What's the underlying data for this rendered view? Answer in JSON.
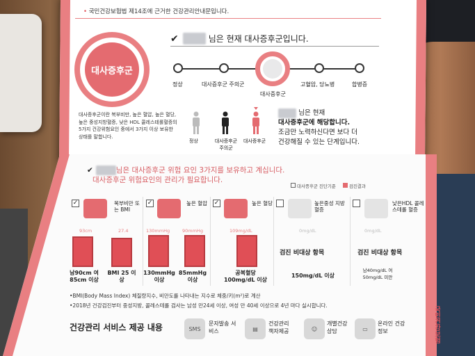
{
  "header": {
    "note": "국민건강보험법 제14조에 근거한 건강관리안내문입니다.",
    "badge": "대사증후군",
    "status_text": "님은 현재 대사증후군입니다."
  },
  "progress": {
    "stages": [
      "정상",
      "대사증후군 주의군",
      "대사증후군",
      "고혈압, 당뇨병",
      "합병증"
    ],
    "current_index": 2
  },
  "description": {
    "lines": [
      "대사증후군이란 복부비만, 높은 혈압, 높은 혈당,",
      "높은 중성지방혈증, 낮은 HDL 콜레스테롤혈증의",
      "5가지 건강위험요인 중에서 3가지 이상 보유한",
      "상태를 말합니다."
    ]
  },
  "figures": {
    "labels": [
      "정상",
      "대사증후군 주의군",
      "대사증후군"
    ]
  },
  "message": {
    "line1": "님은 현재",
    "line2": "대사증후군에 해당합니다.",
    "line3": "조금만 노력하신다면 보다 더",
    "line4": "건강해질 수 있는 단계입니다."
  },
  "risk_section": {
    "line1": "님은 대사증후군 위험 요인 3가지를 보유하고 계십니다.",
    "line2": "대사증후군 위험요인의 관리가 필요합니다.",
    "legend_threshold": "대사증후군 진단기준",
    "legend_result": "검진결과"
  },
  "factors": [
    {
      "name": "복부비만 또는 BMI",
      "checked": true,
      "thresholds": [
        "93cm",
        "27.4"
      ],
      "values": [
        "남90cm 여85cm 이상",
        "BMI 25 이상"
      ]
    },
    {
      "name": "높은 혈압",
      "checked": true,
      "thresholds": [
        "130mmHg",
        "90mmHg"
      ],
      "values": [
        "130mmHg 이상",
        "85mmHg 이상"
      ]
    },
    {
      "name": "높은 혈당",
      "checked": true,
      "thresholds": [
        "109mg/dL"
      ],
      "values": [
        "공복혈당 100mg/dL 이상"
      ]
    },
    {
      "name": "높은중성 지방혈증",
      "checked": false,
      "thresholds": [
        "0mg/dL"
      ],
      "na": "검진 비대상 항목",
      "values": [
        "150mg/dL 이상"
      ]
    },
    {
      "name": "낮은HDL 콜레스테롤 혈증",
      "checked": false,
      "thresholds": [
        "0mg/dL"
      ],
      "na": "검진 비대상 항목",
      "values": [
        "남40mg/dL 여50mg/dL 미만"
      ]
    }
  ],
  "footnotes": [
    "•BMI(Body Mass Index) 체질량지수, 비만도를 나타내는 지수로 체중/키(m²)로 계산",
    "•2018년 건강검진부터 중성지방, 콜레스테롤 검사는 남성 만24세 이상, 여성 만 40세 이상으로 4년 마다 실시합니다."
  ],
  "services": {
    "title": "건강관리 서비스 제공 내용",
    "items": [
      {
        "label": "문자발송 서비스",
        "icon": "sms-icon",
        "icon_text": "SMS"
      },
      {
        "label": "건강관리 책자제공",
        "icon": "booklet-icon",
        "icon_text": ""
      },
      {
        "label": "개별건강 상담",
        "icon": "consult-icon",
        "icon_text": ""
      },
      {
        "label": "온라인 건강정보",
        "icon": "monitor-icon",
        "icon_text": ""
      }
    ]
  },
  "logo_text": "국민건강보험",
  "colors": {
    "accent": "#e97f82",
    "bar": "#e04f56"
  }
}
